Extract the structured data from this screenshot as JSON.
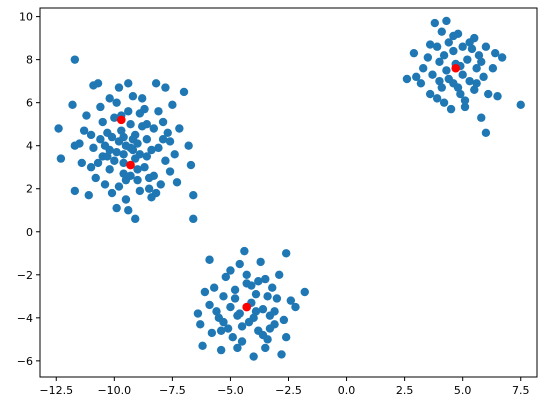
{
  "chart_data": {
    "type": "scatter",
    "title": "",
    "xlabel": "",
    "ylabel": "",
    "xlim": [
      -13.2,
      8.2
    ],
    "ylim": [
      -6.75,
      10.4
    ],
    "grid": false,
    "x_ticks": [
      -12.5,
      -10.0,
      -7.5,
      -5.0,
      -2.5,
      0.0,
      2.5,
      5.0,
      7.5
    ],
    "x_tick_labels": [
      "−12.5",
      "−10.0",
      "−7.5",
      "−5.0",
      "−2.5",
      "0.0",
      "2.5",
      "5.0",
      "7.5"
    ],
    "y_ticks": [
      -6,
      -4,
      -2,
      0,
      2,
      4,
      6,
      8,
      10
    ],
    "y_tick_labels": [
      "−6",
      "−4",
      "−2",
      "0",
      "2",
      "4",
      "6",
      "8",
      "10"
    ],
    "series": [
      {
        "color": "#1f77b4",
        "marker": "circle",
        "points": [
          [
            -11.7,
            8.0
          ],
          [
            -12.4,
            4.8
          ],
          [
            -12.3,
            3.4
          ],
          [
            -11.8,
            5.9
          ],
          [
            -11.7,
            4.0
          ],
          [
            -11.5,
            4.1
          ],
          [
            -11.7,
            1.9
          ],
          [
            -11.3,
            4.7
          ],
          [
            -11.1,
            1.7
          ],
          [
            -11.0,
            3.0
          ],
          [
            -10.9,
            3.9
          ],
          [
            -11.2,
            5.4
          ],
          [
            -10.7,
            6.9
          ],
          [
            -10.6,
            5.8
          ],
          [
            -10.9,
            6.8
          ],
          [
            -10.5,
            3.5
          ],
          [
            -10.4,
            2.2
          ],
          [
            -10.3,
            4.6
          ],
          [
            -10.2,
            6.2
          ],
          [
            -10.1,
            1.8
          ],
          [
            -9.9,
            1.1
          ],
          [
            -9.8,
            6.7
          ],
          [
            -9.7,
            5.4
          ],
          [
            -9.6,
            4.4
          ],
          [
            -9.6,
            3.2
          ],
          [
            -9.5,
            2.4
          ],
          [
            -9.4,
            6.9
          ],
          [
            -9.3,
            5.0
          ],
          [
            -9.2,
            3.8
          ],
          [
            -9.1,
            4.5
          ],
          [
            -9.0,
            2.9
          ],
          [
            -8.9,
            1.9
          ],
          [
            -8.8,
            6.2
          ],
          [
            -8.7,
            5.7
          ],
          [
            -8.6,
            3.5
          ],
          [
            -8.5,
            2.5
          ],
          [
            -8.4,
            1.6
          ],
          [
            -8.3,
            4.8
          ],
          [
            -8.2,
            6.9
          ],
          [
            -8.1,
            3.9
          ],
          [
            -8.0,
            2.2
          ],
          [
            -7.9,
            5.1
          ],
          [
            -7.8,
            6.7
          ],
          [
            -7.8,
            3.3
          ],
          [
            -7.7,
            4.6
          ],
          [
            -7.6,
            2.8
          ],
          [
            -7.5,
            5.9
          ],
          [
            -7.4,
            3.6
          ],
          [
            -7.2,
            4.8
          ],
          [
            -7.0,
            6.5
          ],
          [
            -6.8,
            4.0
          ],
          [
            -6.7,
            3.1
          ],
          [
            -6.6,
            1.7
          ],
          [
            -6.6,
            0.6
          ],
          [
            -7.3,
            2.3
          ],
          [
            -9.1,
            0.6
          ],
          [
            -9.4,
            1.0
          ],
          [
            -10.0,
            5.3
          ],
          [
            -10.4,
            4.0
          ],
          [
            -9.9,
            3.7
          ],
          [
            -9.7,
            4.7
          ],
          [
            -9.3,
            3.9
          ],
          [
            -9.6,
            2.7
          ],
          [
            -10.2,
            2.9
          ],
          [
            -10.5,
            5.1
          ],
          [
            -10.8,
            2.5
          ],
          [
            -9.0,
            4.1
          ],
          [
            -8.9,
            5.5
          ],
          [
            -8.6,
            4.3
          ],
          [
            -8.3,
            2.6
          ],
          [
            -8.1,
            5.6
          ],
          [
            -7.9,
            4.3
          ],
          [
            -9.2,
            6.3
          ],
          [
            -9.9,
            6.0
          ],
          [
            -10.6,
            4.3
          ],
          [
            -9.4,
            5.6
          ],
          [
            -9.8,
            2.1
          ],
          [
            -8.7,
            3.0
          ],
          [
            -8.4,
            3.8
          ],
          [
            -9.1,
            3.4
          ],
          [
            -10.0,
            3.3
          ],
          [
            -10.3,
            3.5
          ],
          [
            -9.5,
            4.0
          ],
          [
            -8.8,
            4.9
          ],
          [
            -8.5,
            2.0
          ],
          [
            -9.3,
            2.6
          ],
          [
            -10.1,
            4.4
          ],
          [
            -11.0,
            4.5
          ],
          [
            -11.4,
            3.2
          ],
          [
            -8.2,
            1.8
          ],
          [
            -9.8,
            4.2
          ],
          [
            -9.2,
            4.3
          ],
          [
            -8.9,
            3.6
          ],
          [
            -9.6,
            3.6
          ],
          [
            -10.2,
            3.8
          ],
          [
            -10.7,
            3.2
          ],
          [
            -8.6,
            5.0
          ],
          [
            -9.0,
            2.4
          ],
          [
            -9.5,
            1.5
          ],
          [
            -7.6,
            4.2
          ],
          [
            -5.9,
            -1.3
          ],
          [
            -6.1,
            -2.8
          ],
          [
            -6.4,
            -3.8
          ],
          [
            -6.3,
            -4.3
          ],
          [
            -6.2,
            -5.3
          ],
          [
            -5.9,
            -3.4
          ],
          [
            -5.8,
            -4.7
          ],
          [
            -5.7,
            -2.6
          ],
          [
            -5.5,
            -4.0
          ],
          [
            -5.4,
            -5.5
          ],
          [
            -5.3,
            -3.0
          ],
          [
            -5.2,
            -2.1
          ],
          [
            -5.1,
            -4.5
          ],
          [
            -5.0,
            -3.5
          ],
          [
            -4.9,
            -4.9
          ],
          [
            -4.8,
            -2.7
          ],
          [
            -4.7,
            -3.9
          ],
          [
            -4.6,
            -1.5
          ],
          [
            -4.5,
            -5.1
          ],
          [
            -4.4,
            -0.9
          ],
          [
            -4.3,
            -2.4
          ],
          [
            -4.2,
            -4.2
          ],
          [
            -4.1,
            -3.3
          ],
          [
            -4.0,
            -5.8
          ],
          [
            -3.9,
            -2.9
          ],
          [
            -3.8,
            -4.6
          ],
          [
            -3.7,
            -1.4
          ],
          [
            -3.6,
            -3.6
          ],
          [
            -3.5,
            -2.2
          ],
          [
            -3.4,
            -5.0
          ],
          [
            -3.3,
            -3.9
          ],
          [
            -3.2,
            -2.6
          ],
          [
            -3.1,
            -4.3
          ],
          [
            -3.0,
            -3.1
          ],
          [
            -2.9,
            -2.0
          ],
          [
            -2.8,
            -5.7
          ],
          [
            -2.7,
            -4.1
          ],
          [
            -2.6,
            -1.0
          ],
          [
            -2.6,
            -4.9
          ],
          [
            -2.4,
            -3.2
          ],
          [
            -2.2,
            -3.5
          ],
          [
            -1.8,
            -2.8
          ],
          [
            -5.6,
            -3.7
          ],
          [
            -5.3,
            -4.2
          ],
          [
            -4.8,
            -3.1
          ],
          [
            -4.5,
            -4.4
          ],
          [
            -4.1,
            -2.5
          ],
          [
            -3.9,
            -3.7
          ],
          [
            -3.6,
            -4.8
          ],
          [
            -3.4,
            -3.0
          ],
          [
            -3.1,
            -3.7
          ],
          [
            -4.3,
            -2.0
          ],
          [
            -5.0,
            -1.8
          ],
          [
            -4.6,
            -3.8
          ],
          [
            -3.8,
            -2.3
          ],
          [
            -3.3,
            -4.5
          ],
          [
            -5.4,
            -4.6
          ],
          [
            -4.0,
            -4.0
          ],
          [
            -4.7,
            -5.4
          ],
          [
            -3.5,
            -5.4
          ],
          [
            2.6,
            7.1
          ],
          [
            2.9,
            8.3
          ],
          [
            3.0,
            7.2
          ],
          [
            3.2,
            6.9
          ],
          [
            3.3,
            7.6
          ],
          [
            3.5,
            8.1
          ],
          [
            3.6,
            6.4
          ],
          [
            3.7,
            7.3
          ],
          [
            3.8,
            9.7
          ],
          [
            3.9,
            8.6
          ],
          [
            4.0,
            7.0
          ],
          [
            4.1,
            9.3
          ],
          [
            4.1,
            6.7
          ],
          [
            4.2,
            8.2
          ],
          [
            4.3,
            7.5
          ],
          [
            4.3,
            9.8
          ],
          [
            4.4,
            8.8
          ],
          [
            4.5,
            5.7
          ],
          [
            4.6,
            6.9
          ],
          [
            4.6,
            8.4
          ],
          [
            4.7,
            7.8
          ],
          [
            4.8,
            9.2
          ],
          [
            4.9,
            6.4
          ],
          [
            5.0,
            8.6
          ],
          [
            5.0,
            7.3
          ],
          [
            5.1,
            5.8
          ],
          [
            5.2,
            8.0
          ],
          [
            5.3,
            7.0
          ],
          [
            5.4,
            8.5
          ],
          [
            5.5,
            6.6
          ],
          [
            5.6,
            7.6
          ],
          [
            5.7,
            8.2
          ],
          [
            5.8,
            5.3
          ],
          [
            5.9,
            7.2
          ],
          [
            6.0,
            8.6
          ],
          [
            6.0,
            4.6
          ],
          [
            6.1,
            6.4
          ],
          [
            6.3,
            7.6
          ],
          [
            6.4,
            8.3
          ],
          [
            6.5,
            6.3
          ],
          [
            6.7,
            8.1
          ],
          [
            7.5,
            5.9
          ],
          [
            3.9,
            6.2
          ],
          [
            4.4,
            7.1
          ],
          [
            4.9,
            7.7
          ],
          [
            5.3,
            8.8
          ],
          [
            5.6,
            6.9
          ],
          [
            4.2,
            6.0
          ],
          [
            3.6,
            8.7
          ],
          [
            5.8,
            7.9
          ],
          [
            4.6,
            9.1
          ],
          [
            5.1,
            6.1
          ],
          [
            4.0,
            7.9
          ],
          [
            4.8,
            6.7
          ],
          [
            5.5,
            9.0
          ]
        ]
      },
      {
        "name": "",
        "color": "#ff0000",
        "marker": "circle",
        "points": [
          [
            -9.7,
            5.2
          ],
          [
            -9.3,
            3.1
          ],
          [
            -4.3,
            -3.5
          ],
          [
            4.7,
            7.6
          ]
        ]
      }
    ]
  }
}
